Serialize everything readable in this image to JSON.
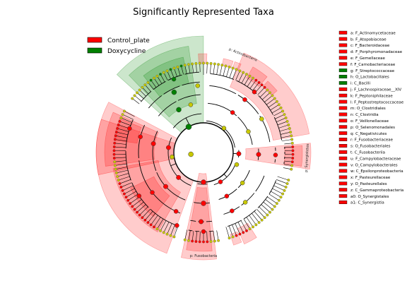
{
  "chart_data": {
    "type": "cladogram",
    "title": "Significantly Represented Taxa",
    "legend": [
      {
        "name": "Control_plate",
        "color": "#ff0000"
      },
      {
        "name": "Doxycycline",
        "color": "#008000"
      }
    ],
    "legend_placement": "top-left",
    "key_placement": "right",
    "key": [
      {
        "label": "a: F_Actinomycetaceae",
        "group": "Control_plate"
      },
      {
        "label": "b: F_Atopobiaceae",
        "group": "Control_plate"
      },
      {
        "label": "c: F_Bacteroidaceae",
        "group": "Control_plate"
      },
      {
        "label": "d: F_Porphyromonadaceae",
        "group": "Control_plate"
      },
      {
        "label": "e: F_Gemellaceae",
        "group": "Control_plate"
      },
      {
        "label": "f: F_Carnobacteriaceae",
        "group": "Control_plate"
      },
      {
        "label": "g: F_Streptococcaceae",
        "group": "Doxycycline"
      },
      {
        "label": "h: O_Lactobacillales",
        "group": "Doxycycline"
      },
      {
        "label": "i: C_Bacilli",
        "group": "Doxycycline"
      },
      {
        "label": "j: F_Lachnospiraceae__XIV",
        "group": "Control_plate"
      },
      {
        "label": "k: F_Peptoniphilaceae",
        "group": "Control_plate"
      },
      {
        "label": "l: F_Peptostreptococcaceae",
        "group": "Control_plate"
      },
      {
        "label": "m: O_Clostridiales",
        "group": "Control_plate"
      },
      {
        "label": "n: C_Clostridia",
        "group": "Control_plate"
      },
      {
        "label": "o: F_Veillonellaceae",
        "group": "Control_plate"
      },
      {
        "label": "p: O_Selenomonadales",
        "group": "Control_plate"
      },
      {
        "label": "q: C_Negativicutes",
        "group": "Control_plate"
      },
      {
        "label": "r: F_Fusobacteriaceae",
        "group": "Control_plate"
      },
      {
        "label": "s: O_Fusobacteriales",
        "group": "Control_plate"
      },
      {
        "label": "t: C_Fusobacteriia",
        "group": "Control_plate"
      },
      {
        "label": "u: F_Campylobacteraceae",
        "group": "Control_plate"
      },
      {
        "label": "v: O_Campylobacterales",
        "group": "Control_plate"
      },
      {
        "label": "w: C_Epsilonproteobacteria",
        "group": "Control_plate"
      },
      {
        "label": "x: F_Pasteurellaceae",
        "group": "Control_plate"
      },
      {
        "label": "y: O_Pasteurellales",
        "group": "Control_plate"
      },
      {
        "label": "z: C_Gammaproteobacteria",
        "group": "Control_plate"
      },
      {
        "label": "a0: O_Synergistales",
        "group": "Control_plate"
      },
      {
        "label": "a1: C_Synergistia",
        "group": "Control_plate"
      }
    ],
    "sector_labels": [
      {
        "text": "p: Actinobacteria",
        "group": "Control_plate",
        "angle_deg": 22
      },
      {
        "text": "p: Synergistetes",
        "group": "Control_plate",
        "angle_deg": 93
      },
      {
        "text": "p: Fusobacteria",
        "group": "Control_plate",
        "angle_deg": 180
      }
    ],
    "marker_colors": {
      "significant_control": "#ff0000",
      "significant_doxy": "#008000",
      "not_significant": "#c8c800"
    }
  }
}
